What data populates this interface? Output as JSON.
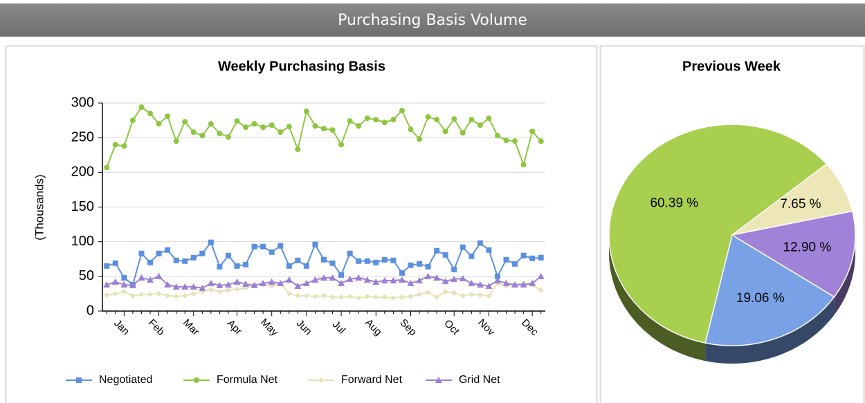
{
  "header": {
    "title": "Purchasing Basis Volume"
  },
  "chart_data": [
    {
      "type": "line",
      "title": "Weekly Purchasing Basis",
      "y_label": "(Thousands)",
      "categories": [
        null,
        null,
        "Jan",
        null,
        null,
        null,
        "Feb",
        null,
        null,
        null,
        "Mar",
        null,
        null,
        null,
        null,
        "Apr",
        null,
        null,
        null,
        "May",
        null,
        null,
        null,
        "Jun",
        null,
        null,
        null,
        "Jul",
        null,
        null,
        null,
        "Aug",
        null,
        null,
        null,
        "Sep",
        null,
        null,
        null,
        null,
        "Oct",
        null,
        null,
        null,
        "Nov",
        null,
        null,
        null,
        null,
        "Dec",
        null
      ],
      "series": [
        {
          "name": "Negotiated",
          "color": "#5b8fe0",
          "marker": "square",
          "values": [
            65,
            69,
            48,
            38,
            83,
            70,
            83,
            88,
            73,
            72,
            77,
            83,
            99,
            64,
            80,
            65,
            67,
            93,
            93,
            85,
            94,
            65,
            73,
            65,
            96,
            74,
            69,
            52,
            83,
            72,
            72,
            70,
            74,
            73,
            55,
            66,
            68,
            64,
            87,
            81,
            60,
            92,
            79,
            98,
            88,
            50,
            74,
            68,
            80,
            76,
            77
          ]
        },
        {
          "name": "Formula Net",
          "color": "#8dc63f",
          "marker": "circle",
          "values": [
            207,
            240,
            238,
            275,
            294,
            285,
            270,
            281,
            245,
            273,
            258,
            253,
            270,
            256,
            251,
            274,
            265,
            270,
            265,
            268,
            258,
            266,
            233,
            288,
            267,
            263,
            261,
            240,
            274,
            267,
            278,
            276,
            272,
            276,
            289,
            262,
            248,
            280,
            276,
            259,
            277,
            257,
            276,
            268,
            278,
            253,
            246,
            245,
            211,
            259,
            245
          ]
        },
        {
          "name": "Forward Net",
          "color": "#e6e2b4",
          "marker": "diamond",
          "values": [
            23,
            25,
            28,
            22,
            24,
            24,
            25,
            22,
            21,
            22,
            25,
            28,
            31,
            28,
            30,
            32,
            33,
            38,
            38,
            36,
            40,
            25,
            22,
            22,
            21,
            22,
            20,
            20,
            21,
            19,
            21,
            20,
            20,
            19,
            20,
            21,
            24,
            27,
            20,
            28,
            26,
            22,
            24,
            23,
            22,
            40,
            36,
            38,
            40,
            38,
            30
          ]
        },
        {
          "name": "Grid Net",
          "color": "#9b7fd4",
          "marker": "triangle",
          "values": [
            38,
            42,
            38,
            37,
            48,
            45,
            50,
            38,
            35,
            35,
            35,
            33,
            40,
            37,
            38,
            42,
            39,
            37,
            40,
            42,
            40,
            45,
            36,
            40,
            45,
            48,
            48,
            40,
            46,
            48,
            45,
            42,
            44,
            44,
            45,
            40,
            44,
            50,
            48,
            43,
            46,
            47,
            40,
            38,
            36,
            44,
            40,
            38,
            38,
            40,
            50
          ]
        }
      ],
      "ylim": [
        0,
        300
      ],
      "yticks": [
        0,
        50,
        100,
        150,
        200,
        250,
        300
      ],
      "grid": true,
      "legend": "bottom"
    },
    {
      "type": "pie",
      "title": "Previous Week",
      "values": [
        19.06,
        60.39,
        7.65,
        12.9
      ],
      "value_labels": [
        "19.06 %",
        "60.39 %",
        "7.65 %",
        "12.90 %"
      ],
      "colors": [
        "#78a1e6",
        "#a8cf4e",
        "#ede7b8",
        "#a083d8"
      ]
    }
  ]
}
